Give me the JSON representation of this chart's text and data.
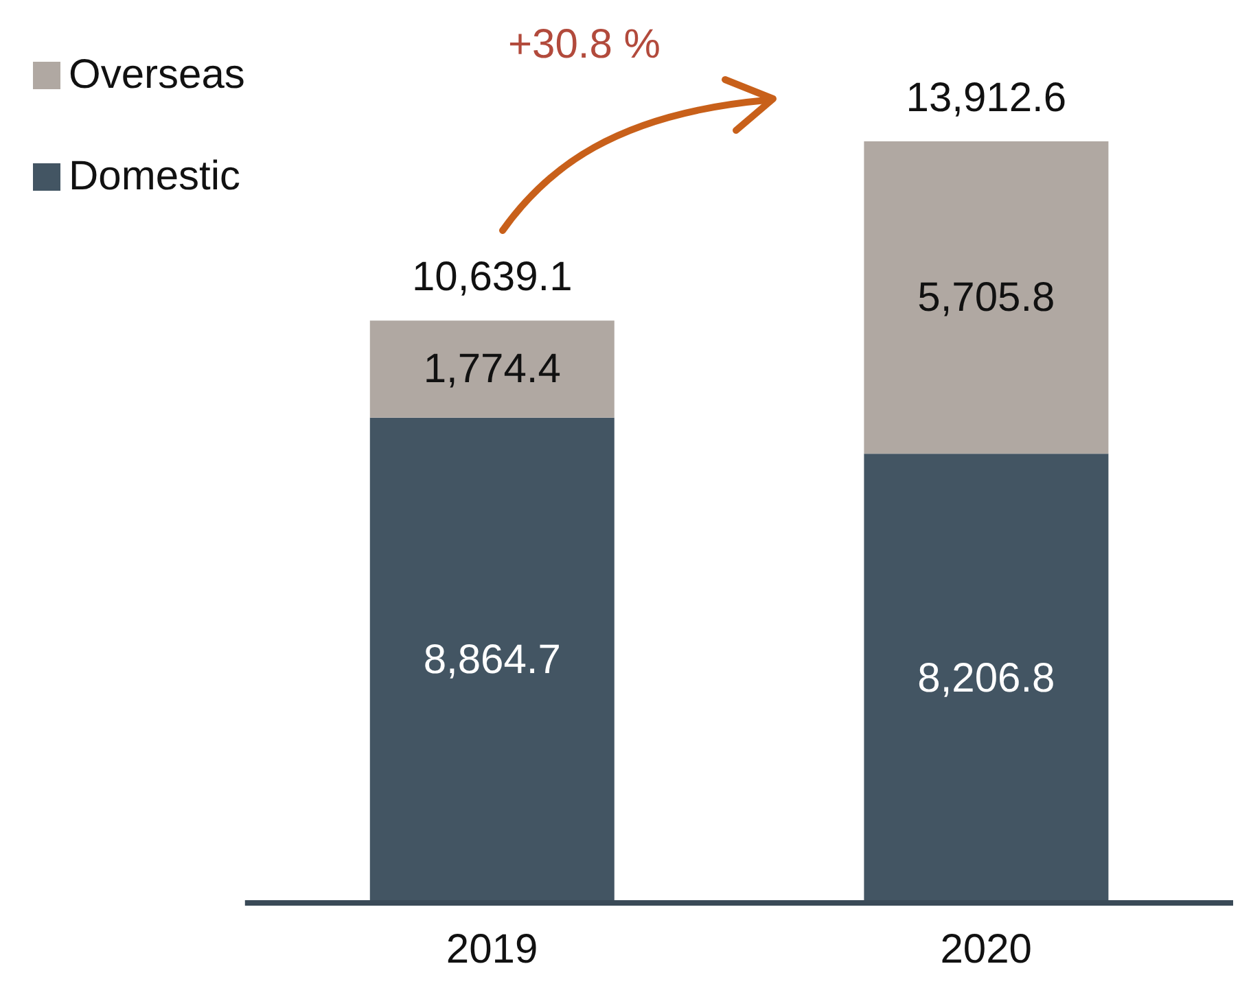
{
  "chart_data": {
    "type": "bar",
    "stacked": true,
    "categories": [
      "2019",
      "2020"
    ],
    "series": [
      {
        "name": "Domestic",
        "color": "#435563",
        "values": [
          8864.7,
          8206.8
        ],
        "value_labels": [
          "8,864.7",
          "8,206.8"
        ]
      },
      {
        "name": "Overseas",
        "color": "#b0a8a2",
        "values": [
          1774.4,
          5705.8
        ],
        "value_labels": [
          "1,774.4",
          "5,705.8"
        ]
      }
    ],
    "totals": [
      "10,639.1",
      "13,912.6"
    ],
    "annotations": [
      "+30.8 %"
    ],
    "legend": "top left",
    "grid": false
  }
}
